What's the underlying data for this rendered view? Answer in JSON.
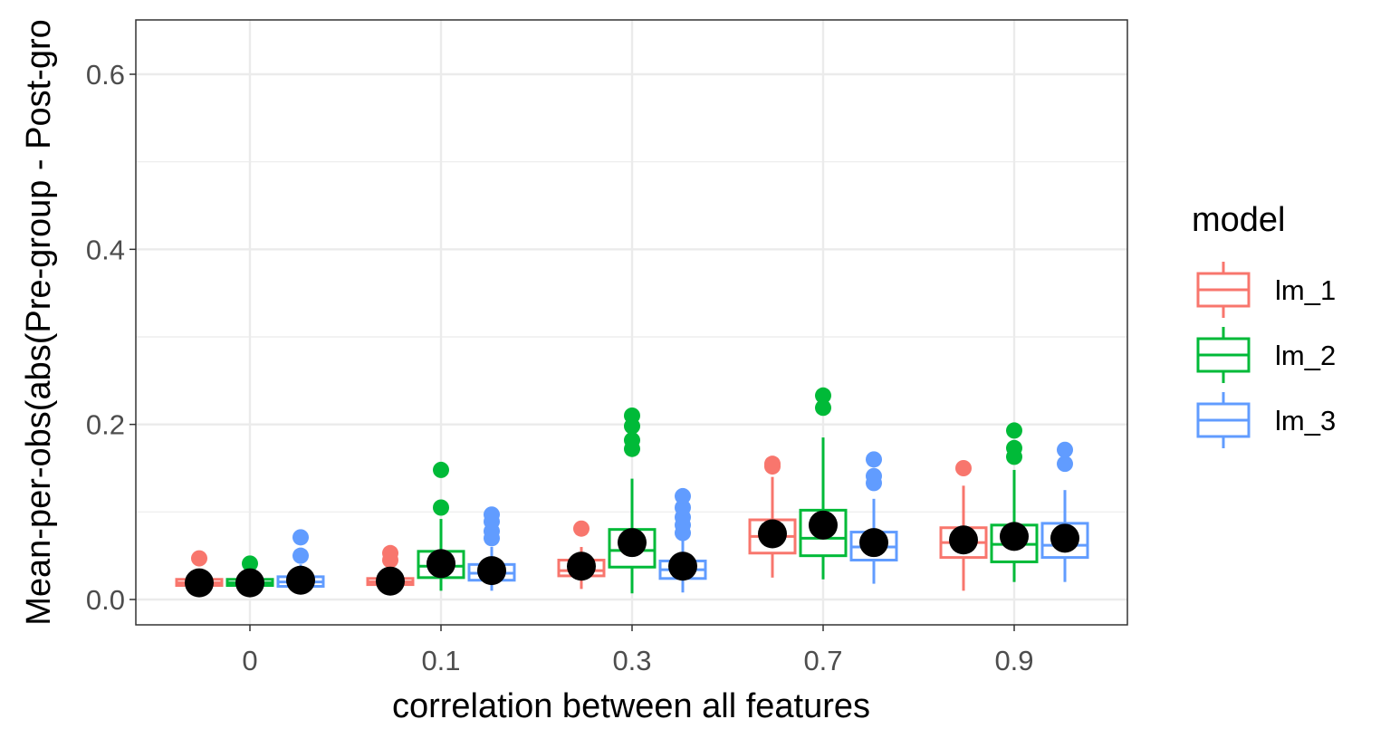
{
  "chart_data": {
    "type": "boxplot",
    "xlabel": "correlation between all features",
    "ylabel": "Mean-per-obs(abs(Pre-group - Post-gro",
    "categories": [
      "0",
      "0.1",
      "0.3",
      "0.7",
      "0.9"
    ],
    "ylim": [
      -0.03,
      0.66
    ],
    "yticks": [
      0.0,
      0.2,
      0.4,
      0.6
    ],
    "ytick_labels": [
      "0.0",
      "0.2",
      "0.4",
      "0.6"
    ],
    "grid": true,
    "legend": {
      "title": "model",
      "position": "right"
    },
    "series": [
      {
        "name": "lm_1",
        "color": "#F8766D",
        "boxes": [
          {
            "q1": 0.016,
            "median": 0.019,
            "q3": 0.023,
            "lower": 0.014,
            "upper": 0.027,
            "mean": 0.019,
            "outliers": [
              0.047
            ]
          },
          {
            "q1": 0.017,
            "median": 0.02,
            "q3": 0.024,
            "lower": 0.014,
            "upper": 0.028,
            "mean": 0.021,
            "outliers": [
              0.045,
              0.053
            ]
          },
          {
            "q1": 0.027,
            "median": 0.033,
            "q3": 0.045,
            "lower": 0.012,
            "upper": 0.06,
            "mean": 0.038,
            "outliers": [
              0.081
            ]
          },
          {
            "q1": 0.053,
            "median": 0.072,
            "q3": 0.091,
            "lower": 0.025,
            "upper": 0.14,
            "mean": 0.075,
            "outliers": [
              0.152,
              0.155
            ]
          },
          {
            "q1": 0.048,
            "median": 0.065,
            "q3": 0.082,
            "lower": 0.01,
            "upper": 0.13,
            "mean": 0.068,
            "outliers": [
              0.15
            ]
          }
        ]
      },
      {
        "name": "lm_2",
        "color": "#00BA38",
        "boxes": [
          {
            "q1": 0.016,
            "median": 0.019,
            "q3": 0.023,
            "lower": 0.014,
            "upper": 0.027,
            "mean": 0.019,
            "outliers": [
              0.041
            ]
          },
          {
            "q1": 0.025,
            "median": 0.038,
            "q3": 0.055,
            "lower": 0.01,
            "upper": 0.092,
            "mean": 0.041,
            "outliers": [
              0.105,
              0.148
            ]
          },
          {
            "q1": 0.037,
            "median": 0.056,
            "q3": 0.08,
            "lower": 0.007,
            "upper": 0.138,
            "mean": 0.065,
            "outliers": [
              0.172,
              0.182,
              0.198,
              0.21
            ]
          },
          {
            "q1": 0.05,
            "median": 0.07,
            "q3": 0.102,
            "lower": 0.023,
            "upper": 0.185,
            "mean": 0.085,
            "outliers": [
              0.219,
              0.233
            ]
          },
          {
            "q1": 0.043,
            "median": 0.063,
            "q3": 0.085,
            "lower": 0.02,
            "upper": 0.148,
            "mean": 0.072,
            "outliers": [
              0.163,
              0.173,
              0.193
            ]
          }
        ]
      },
      {
        "name": "lm_3",
        "color": "#619CFF",
        "boxes": [
          {
            "q1": 0.015,
            "median": 0.02,
            "q3": 0.026,
            "lower": 0.012,
            "upper": 0.04,
            "mean": 0.022,
            "outliers": [
              0.05,
              0.071
            ]
          },
          {
            "q1": 0.022,
            "median": 0.03,
            "q3": 0.04,
            "lower": 0.01,
            "upper": 0.06,
            "mean": 0.033,
            "outliers": [
              0.07,
              0.078,
              0.089,
              0.097
            ]
          },
          {
            "q1": 0.024,
            "median": 0.034,
            "q3": 0.044,
            "lower": 0.008,
            "upper": 0.07,
            "mean": 0.038,
            "outliers": [
              0.076,
              0.085,
              0.094,
              0.105,
              0.118
            ]
          },
          {
            "q1": 0.045,
            "median": 0.06,
            "q3": 0.077,
            "lower": 0.018,
            "upper": 0.115,
            "mean": 0.065,
            "outliers": [
              0.133,
              0.141,
              0.16
            ]
          },
          {
            "q1": 0.048,
            "median": 0.062,
            "q3": 0.087,
            "lower": 0.02,
            "upper": 0.125,
            "mean": 0.07,
            "outliers": [
              0.155,
              0.171
            ]
          }
        ]
      }
    ]
  }
}
